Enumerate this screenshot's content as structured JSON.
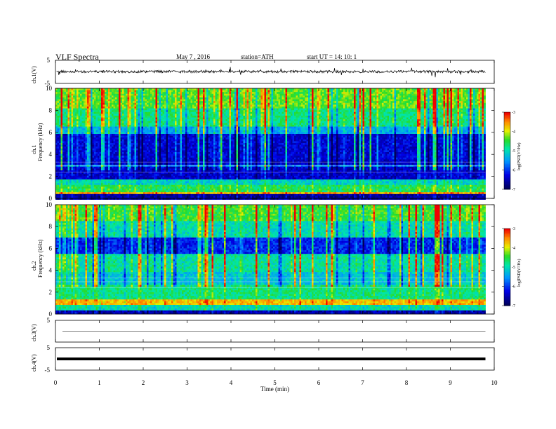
{
  "header": {
    "title": "VLF  Spectra",
    "date": "May 7  , 2016",
    "station": "station=ATH",
    "start": "start  UT  =    14: 10: 1"
  },
  "labels": {
    "ch1_v": "ch.1(V)",
    "ch1_spec_ch": "ch.1",
    "ch1_spec_freq": "Frequency  (kHz)",
    "ch2_spec_ch": "ch.2",
    "ch2_spec_freq": "Frequency  (kHz)",
    "ch3_v": "ch.3(V)",
    "ch4_v": "ch.4(V)",
    "xlabel": "Time  (min)",
    "colorbar_label": "log(PSD(V²/Hz)"
  },
  "chart_data": [
    {
      "type": "line",
      "name": "ch1-waveform",
      "ylabel": "ch.1(V)",
      "ylim": [
        -5,
        5
      ],
      "y_ticks": [
        "5",
        "-5"
      ],
      "xlim": [
        0,
        10
      ],
      "x_range_data": [
        0,
        9.8
      ],
      "series": [
        {
          "values_description_level": 0.1
        }
      ]
    },
    {
      "type": "heatmap",
      "name": "ch1-spectrogram",
      "ylabel": "Frequency  (kHz)",
      "ylim": [
        0,
        10
      ],
      "y_ticks": [
        "0",
        "2",
        "4",
        "6",
        "8",
        "10"
      ],
      "xlim": [
        0,
        10
      ],
      "colorbar": {
        "range": [
          -7,
          -3
        ],
        "ticks": [
          "-3",
          "-4",
          "-5",
          "-6",
          "-7"
        ]
      }
    },
    {
      "type": "heatmap",
      "name": "ch2-spectrogram",
      "ylabel": "Frequency  (kHz)",
      "ylim": [
        0,
        10
      ],
      "y_ticks": [
        "0",
        "2",
        "4",
        "6",
        "8",
        "10"
      ],
      "xlim": [
        0,
        10
      ],
      "colorbar": {
        "range": [
          -7,
          -3
        ],
        "ticks": [
          "-3",
          "-4",
          "-5",
          "-6",
          "-7"
        ]
      }
    },
    {
      "type": "line",
      "name": "ch3-waveform",
      "ylabel": "ch.3(V)",
      "ylim": [
        -5,
        5
      ],
      "y_ticks": [
        "5"
      ],
      "xlim": [
        0,
        10
      ],
      "series": [
        {
          "level": 0.0
        }
      ]
    },
    {
      "type": "line",
      "name": "ch4-waveform",
      "ylabel": "ch.4(V)",
      "ylim": [
        -5,
        5
      ],
      "y_ticks": [
        "5",
        "-5"
      ],
      "xlim": [
        0,
        10
      ],
      "series": [
        {
          "level": 0.0
        }
      ]
    }
  ],
  "x_ticks": [
    "0",
    "1",
    "2",
    "3",
    "4",
    "5",
    "6",
    "7",
    "8",
    "9",
    "10"
  ]
}
